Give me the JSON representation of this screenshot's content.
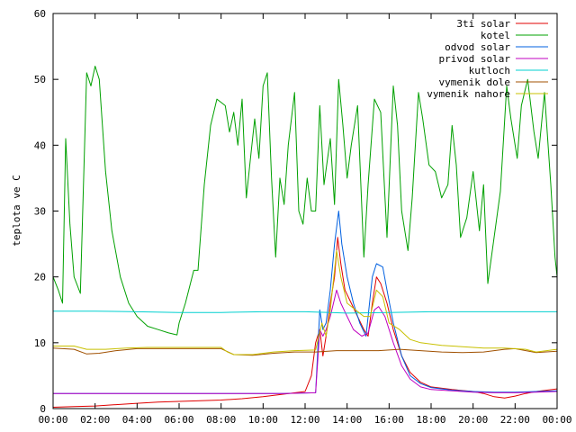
{
  "chart_data": {
    "type": "line",
    "title": "",
    "xlabel": "",
    "ylabel": "teplota ve C",
    "xlim": [
      0,
      24
    ],
    "ylim": [
      0,
      60
    ],
    "x_ticks": [
      "00:00",
      "02:00",
      "04:00",
      "06:00",
      "08:00",
      "10:00",
      "12:00",
      "14:00",
      "16:00",
      "18:00",
      "20:00",
      "22:00",
      "00:00"
    ],
    "y_ticks": [
      "0",
      "10",
      "20",
      "30",
      "40",
      "50",
      "60"
    ],
    "grid": false,
    "legend_position": "top-right",
    "series": [
      {
        "name": "3ti solar",
        "color": "#e00000",
        "points": [
          [
            0,
            0.2
          ],
          [
            1,
            0.3
          ],
          [
            2,
            0.4
          ],
          [
            3,
            0.6
          ],
          [
            4,
            0.8
          ],
          [
            5,
            1.0
          ],
          [
            6,
            1.1
          ],
          [
            7,
            1.2
          ],
          [
            8,
            1.3
          ],
          [
            9,
            1.5
          ],
          [
            10,
            1.8
          ],
          [
            11,
            2.2
          ],
          [
            12,
            2.6
          ],
          [
            12.3,
            5
          ],
          [
            12.5,
            10
          ],
          [
            12.7,
            12
          ],
          [
            12.85,
            8
          ],
          [
            13.0,
            11
          ],
          [
            13.2,
            16
          ],
          [
            13.4,
            20
          ],
          [
            13.55,
            26
          ],
          [
            13.7,
            22
          ],
          [
            13.9,
            18
          ],
          [
            14.2,
            16
          ],
          [
            14.5,
            14
          ],
          [
            14.8,
            12
          ],
          [
            15.0,
            11
          ],
          [
            15.2,
            16
          ],
          [
            15.4,
            20
          ],
          [
            15.6,
            19
          ],
          [
            15.9,
            16
          ],
          [
            16.2,
            12
          ],
          [
            16.6,
            8
          ],
          [
            17.0,
            5.5
          ],
          [
            17.5,
            4
          ],
          [
            18,
            3.3
          ],
          [
            19,
            2.9
          ],
          [
            20,
            2.6
          ],
          [
            20.5,
            2.3
          ],
          [
            21,
            1.8
          ],
          [
            21.5,
            1.6
          ],
          [
            22,
            1.9
          ],
          [
            22.5,
            2.3
          ],
          [
            23,
            2.6
          ],
          [
            24,
            3.0
          ]
        ]
      },
      {
        "name": "kotel",
        "color": "#00a000",
        "points": [
          [
            0,
            20
          ],
          [
            0.25,
            18
          ],
          [
            0.45,
            16
          ],
          [
            0.6,
            41
          ],
          [
            0.8,
            28
          ],
          [
            1.0,
            20
          ],
          [
            1.3,
            17.5
          ],
          [
            1.6,
            51
          ],
          [
            1.8,
            49
          ],
          [
            2.0,
            52
          ],
          [
            2.2,
            50
          ],
          [
            2.5,
            36
          ],
          [
            2.8,
            27
          ],
          [
            3.2,
            20
          ],
          [
            3.6,
            16
          ],
          [
            4.0,
            14
          ],
          [
            4.5,
            12.5
          ],
          [
            5.0,
            12
          ],
          [
            5.5,
            11.5
          ],
          [
            5.9,
            11.2
          ],
          [
            6.0,
            13
          ],
          [
            6.3,
            16
          ],
          [
            6.7,
            21
          ],
          [
            6.9,
            21
          ],
          [
            7.2,
            34
          ],
          [
            7.5,
            43
          ],
          [
            7.8,
            47
          ],
          [
            8.2,
            46
          ],
          [
            8.4,
            42
          ],
          [
            8.6,
            45
          ],
          [
            8.8,
            40
          ],
          [
            9.0,
            47
          ],
          [
            9.2,
            32
          ],
          [
            9.4,
            38
          ],
          [
            9.6,
            44
          ],
          [
            9.8,
            38
          ],
          [
            10.0,
            49
          ],
          [
            10.2,
            51
          ],
          [
            10.4,
            35
          ],
          [
            10.6,
            23
          ],
          [
            10.8,
            35
          ],
          [
            11.0,
            31
          ],
          [
            11.2,
            40
          ],
          [
            11.5,
            48
          ],
          [
            11.7,
            30
          ],
          [
            11.9,
            28
          ],
          [
            12.1,
            35
          ],
          [
            12.3,
            30
          ],
          [
            12.5,
            30
          ],
          [
            12.7,
            46
          ],
          [
            12.9,
            34
          ],
          [
            13.2,
            41
          ],
          [
            13.4,
            31
          ],
          [
            13.6,
            50
          ],
          [
            13.8,
            43
          ],
          [
            14.0,
            35
          ],
          [
            14.2,
            40
          ],
          [
            14.5,
            46
          ],
          [
            14.8,
            23
          ],
          [
            15.0,
            34
          ],
          [
            15.3,
            47
          ],
          [
            15.6,
            45
          ],
          [
            15.9,
            26
          ],
          [
            16.2,
            49
          ],
          [
            16.4,
            43
          ],
          [
            16.6,
            30
          ],
          [
            16.9,
            24
          ],
          [
            17.1,
            32
          ],
          [
            17.4,
            48
          ],
          [
            17.6,
            44
          ],
          [
            17.9,
            37
          ],
          [
            18.2,
            36
          ],
          [
            18.5,
            32
          ],
          [
            18.8,
            34
          ],
          [
            19.0,
            43
          ],
          [
            19.2,
            37
          ],
          [
            19.4,
            26
          ],
          [
            19.7,
            29
          ],
          [
            20.0,
            36
          ],
          [
            20.3,
            27
          ],
          [
            20.5,
            34
          ],
          [
            20.7,
            19
          ],
          [
            21.0,
            26
          ],
          [
            21.3,
            33
          ],
          [
            21.6,
            49
          ],
          [
            21.8,
            44
          ],
          [
            22.1,
            38
          ],
          [
            22.3,
            46
          ],
          [
            22.6,
            50
          ],
          [
            22.9,
            42
          ],
          [
            23.1,
            38
          ],
          [
            23.4,
            48
          ],
          [
            23.7,
            34
          ],
          [
            23.9,
            23
          ],
          [
            24.0,
            20
          ]
        ]
      },
      {
        "name": "odvod solar",
        "color": "#0060e0",
        "points": [
          [
            0,
            2.3
          ],
          [
            4,
            2.3
          ],
          [
            8,
            2.3
          ],
          [
            11,
            2.3
          ],
          [
            12.5,
            2.4
          ],
          [
            12.7,
            15
          ],
          [
            12.85,
            12
          ],
          [
            13.0,
            13
          ],
          [
            13.2,
            18
          ],
          [
            13.4,
            25
          ],
          [
            13.6,
            30
          ],
          [
            13.75,
            25
          ],
          [
            14.0,
            20
          ],
          [
            14.3,
            16
          ],
          [
            14.6,
            13
          ],
          [
            14.9,
            11
          ],
          [
            15.2,
            20
          ],
          [
            15.4,
            22
          ],
          [
            15.7,
            21.5
          ],
          [
            15.9,
            18
          ],
          [
            16.2,
            13
          ],
          [
            16.6,
            8
          ],
          [
            17.0,
            5
          ],
          [
            17.5,
            3.8
          ],
          [
            18,
            3.2
          ],
          [
            19,
            2.8
          ],
          [
            20,
            2.6
          ],
          [
            21,
            2.5
          ],
          [
            22,
            2.5
          ],
          [
            23,
            2.6
          ],
          [
            24,
            2.7
          ]
        ]
      },
      {
        "name": "privod solar",
        "color": "#c000c0",
        "points": [
          [
            0,
            2.3
          ],
          [
            4,
            2.3
          ],
          [
            8,
            2.3
          ],
          [
            11,
            2.3
          ],
          [
            12.5,
            2.4
          ],
          [
            12.7,
            12
          ],
          [
            12.85,
            11
          ],
          [
            13.0,
            12
          ],
          [
            13.2,
            14
          ],
          [
            13.5,
            18
          ],
          [
            13.7,
            16
          ],
          [
            14.0,
            14
          ],
          [
            14.3,
            12
          ],
          [
            14.7,
            11
          ],
          [
            15.0,
            11.5
          ],
          [
            15.3,
            15
          ],
          [
            15.5,
            15.5
          ],
          [
            15.8,
            14
          ],
          [
            16.2,
            10
          ],
          [
            16.6,
            6.5
          ],
          [
            17.0,
            4.5
          ],
          [
            17.5,
            3.3
          ],
          [
            18,
            2.9
          ],
          [
            19,
            2.7
          ],
          [
            20,
            2.5
          ],
          [
            21,
            2.4
          ],
          [
            22,
            2.4
          ],
          [
            23,
            2.5
          ],
          [
            24,
            2.6
          ]
        ]
      },
      {
        "name": "kutloch",
        "color": "#00d0d0",
        "points": [
          [
            0,
            14.8
          ],
          [
            2,
            14.8
          ],
          [
            4,
            14.7
          ],
          [
            6,
            14.6
          ],
          [
            8,
            14.6
          ],
          [
            10,
            14.7
          ],
          [
            12,
            14.7
          ],
          [
            14,
            14.5
          ],
          [
            16,
            14.6
          ],
          [
            18,
            14.7
          ],
          [
            20,
            14.7
          ],
          [
            22,
            14.7
          ],
          [
            24,
            14.7
          ]
        ]
      },
      {
        "name": "vymenik dole",
        "color": "#a05000",
        "points": [
          [
            0,
            9.2
          ],
          [
            1,
            9.0
          ],
          [
            1.6,
            8.3
          ],
          [
            2.2,
            8.4
          ],
          [
            3,
            8.8
          ],
          [
            4,
            9.1
          ],
          [
            6,
            9.1
          ],
          [
            8,
            9.1
          ],
          [
            8.2,
            8.8
          ],
          [
            8.6,
            8.2
          ],
          [
            9.5,
            8.1
          ],
          [
            10.5,
            8.4
          ],
          [
            11.5,
            8.6
          ],
          [
            12.5,
            8.6
          ],
          [
            13.5,
            8.8
          ],
          [
            14.5,
            8.8
          ],
          [
            15.5,
            8.8
          ],
          [
            16.5,
            9.0
          ],
          [
            17.5,
            8.8
          ],
          [
            18.5,
            8.6
          ],
          [
            19.5,
            8.5
          ],
          [
            20.5,
            8.6
          ],
          [
            21.5,
            9.0
          ],
          [
            22,
            9.1
          ],
          [
            23,
            8.5
          ],
          [
            24,
            8.7
          ]
        ]
      },
      {
        "name": "vymenik nahore",
        "color": "#c8c000",
        "points": [
          [
            0,
            9.5
          ],
          [
            1,
            9.5
          ],
          [
            1.6,
            9.0
          ],
          [
            2.5,
            9.0
          ],
          [
            3.5,
            9.2
          ],
          [
            4.5,
            9.3
          ],
          [
            6,
            9.3
          ],
          [
            8,
            9.3
          ],
          [
            8.3,
            8.6
          ],
          [
            8.6,
            8.2
          ],
          [
            9.5,
            8.2
          ],
          [
            10.5,
            8.6
          ],
          [
            11.5,
            8.8
          ],
          [
            12.5,
            8.9
          ],
          [
            12.8,
            13
          ],
          [
            13.0,
            11
          ],
          [
            13.2,
            15
          ],
          [
            13.5,
            24
          ],
          [
            13.7,
            20
          ],
          [
            14.0,
            16
          ],
          [
            14.4,
            15
          ],
          [
            14.8,
            14
          ],
          [
            15.1,
            14
          ],
          [
            15.4,
            18
          ],
          [
            15.7,
            17
          ],
          [
            16.0,
            13
          ],
          [
            16.5,
            12
          ],
          [
            17.0,
            10.5
          ],
          [
            17.5,
            10
          ],
          [
            18.5,
            9.6
          ],
          [
            19.5,
            9.4
          ],
          [
            20.5,
            9.2
          ],
          [
            21.5,
            9.2
          ],
          [
            22.5,
            9.0
          ],
          [
            23,
            8.6
          ],
          [
            24,
            9.0
          ]
        ]
      }
    ]
  }
}
